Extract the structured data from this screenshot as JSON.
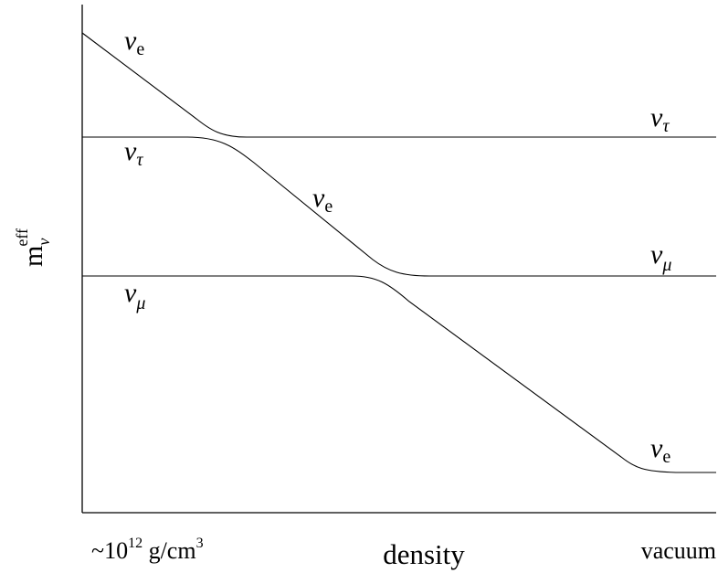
{
  "y_axis_label": {
    "base": "m",
    "subscript": "ν",
    "superscript": "eff"
  },
  "x_axis": {
    "label": "density",
    "left_label": {
      "prefix": "~10",
      "exponent": "12",
      "unit": " g/cm",
      "unit_exponent": "3"
    },
    "right_label": "vacuum"
  },
  "curve_labels": {
    "nu_e_top": {
      "symbol": "ν",
      "flavor": "e"
    },
    "nu_tau_left": {
      "symbol": "ν",
      "flavor": "τ"
    },
    "nu_mu_left": {
      "symbol": "ν",
      "flavor": "μ"
    },
    "nu_e_middle": {
      "symbol": "ν",
      "flavor": "e"
    },
    "nu_tau_right": {
      "symbol": "ν",
      "flavor": "τ"
    },
    "nu_mu_right": {
      "symbol": "ν",
      "flavor": "μ"
    },
    "nu_e_bottom": {
      "symbol": "ν",
      "flavor": "e"
    }
  }
}
